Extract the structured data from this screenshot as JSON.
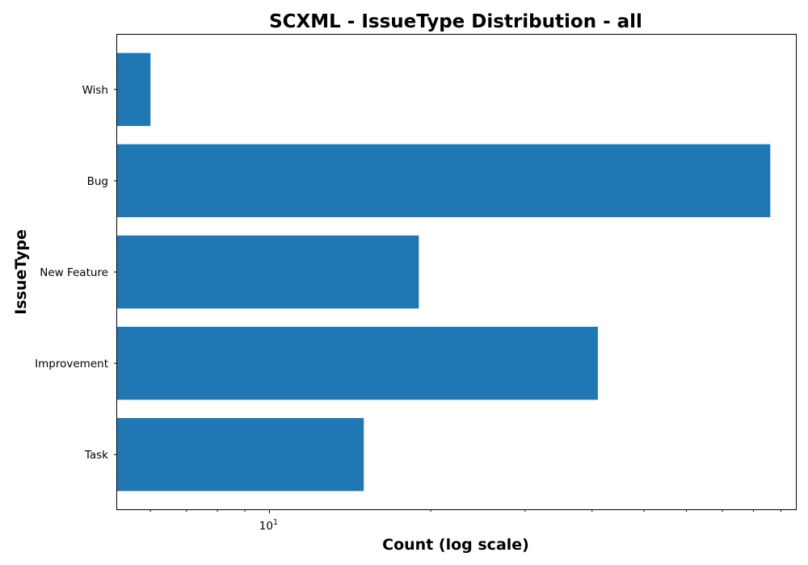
{
  "chart_data": {
    "type": "bar",
    "orientation": "horizontal",
    "title": "SCXML - IssueType Distribution - all",
    "xlabel": "Count (log scale)",
    "ylabel": "IssueType",
    "x_scale": "log",
    "x_ticks": [
      10
    ],
    "x_tick_labels": [
      "10",
      "1"
    ],
    "xlim": [
      5.2,
      96
    ],
    "categories": [
      "Task",
      "Improvement",
      "New Feature",
      "Bug",
      "Wish"
    ],
    "values": [
      15,
      41,
      19,
      86,
      6
    ],
    "bar_color": "#1f77b4",
    "grid": false,
    "legend": "none"
  }
}
